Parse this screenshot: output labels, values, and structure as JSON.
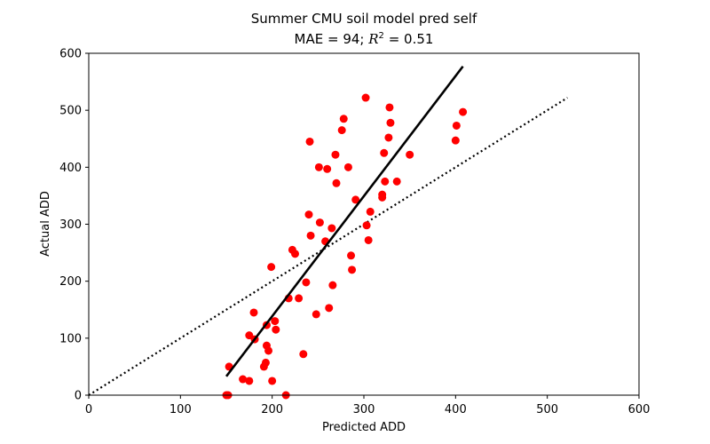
{
  "chart_data": {
    "type": "scatter",
    "title": "Summer CMU soil model pred self",
    "subtitle_prefix": "MAE = 94; ",
    "subtitle_r": "R",
    "subtitle_exp": "2",
    "subtitle_suffix": " = 0.51",
    "xlabel": "Predicted ADD",
    "ylabel": "Actual ADD",
    "xlim": [
      0,
      600
    ],
    "ylim": [
      0,
      600
    ],
    "xticks": [
      0,
      100,
      200,
      300,
      400,
      500,
      600
    ],
    "yticks": [
      0,
      100,
      200,
      300,
      400,
      500,
      600
    ],
    "point_color": "#ff0000",
    "points": [
      [
        150,
        0
      ],
      [
        152,
        0
      ],
      [
        153,
        50
      ],
      [
        168,
        28
      ],
      [
        175,
        25
      ],
      [
        175,
        105
      ],
      [
        180,
        145
      ],
      [
        181,
        98
      ],
      [
        191,
        50
      ],
      [
        193,
        57
      ],
      [
        194,
        123
      ],
      [
        194,
        87
      ],
      [
        196,
        78
      ],
      [
        199,
        225
      ],
      [
        200,
        25
      ],
      [
        203,
        130
      ],
      [
        204,
        115
      ],
      [
        215,
        0
      ],
      [
        218,
        170
      ],
      [
        222,
        255
      ],
      [
        225,
        248
      ],
      [
        229,
        170
      ],
      [
        234,
        72
      ],
      [
        237,
        198
      ],
      [
        240,
        317
      ],
      [
        241,
        445
      ],
      [
        242,
        280
      ],
      [
        248,
        142
      ],
      [
        251,
        400
      ],
      [
        252,
        303
      ],
      [
        258,
        270
      ],
      [
        260,
        397
      ],
      [
        262,
        153
      ],
      [
        265,
        293
      ],
      [
        266,
        193
      ],
      [
        269,
        422
      ],
      [
        270,
        372
      ],
      [
        276,
        465
      ],
      [
        278,
        485
      ],
      [
        283,
        400
      ],
      [
        286,
        245
      ],
      [
        287,
        220
      ],
      [
        291,
        343
      ],
      [
        302,
        522
      ],
      [
        303,
        298
      ],
      [
        305,
        272
      ],
      [
        307,
        322
      ],
      [
        320,
        347
      ],
      [
        320,
        352
      ],
      [
        322,
        425
      ],
      [
        323,
        375
      ],
      [
        327,
        452
      ],
      [
        328,
        505
      ],
      [
        329,
        478
      ],
      [
        336,
        375
      ],
      [
        350,
        422
      ],
      [
        400,
        447
      ],
      [
        401,
        473
      ],
      [
        408,
        497
      ]
    ],
    "fit_line": {
      "x": [
        150,
        408
      ],
      "y": [
        33,
        577
      ],
      "color": "#000000",
      "style": "solid"
    },
    "identity_line": {
      "x": [
        0,
        522
      ],
      "y": [
        0,
        522
      ],
      "color": "#000000",
      "style": "dotted"
    },
    "grid": false
  }
}
